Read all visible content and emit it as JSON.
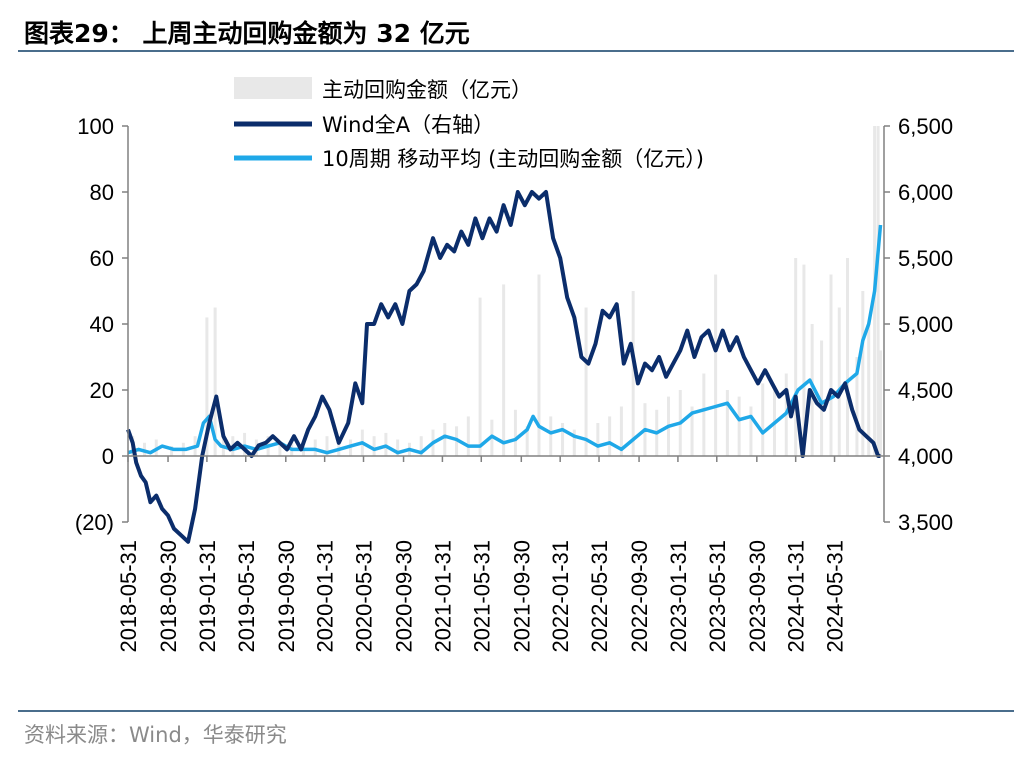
{
  "figure": {
    "title": "图表29： 上周主动回购金额为 32 亿元",
    "source": "资料来源：Wind，华泰研究"
  },
  "chart_data": {
    "type": "bar+line",
    "title": "上周主动回购金额为 32 亿元",
    "legend": [
      {
        "label": "主动回购金额（亿元）",
        "color": "#e8e8e8",
        "kind": "bar"
      },
      {
        "label": "Wind全A（右轴）",
        "color": "#0b2d6b",
        "kind": "line"
      },
      {
        "label": "10周期 移动平均 (主动回购金额（亿元）)",
        "color": "#1fa8e8",
        "kind": "line"
      }
    ],
    "y_left": {
      "min": -20,
      "max": 100,
      "ticks": [
        -20,
        0,
        20,
        40,
        60,
        80,
        100
      ],
      "tick_labels": [
        "(20)",
        "0",
        "20",
        "40",
        "60",
        "80",
        "100"
      ]
    },
    "y_right": {
      "min": 3500,
      "max": 6500,
      "ticks": [
        3500,
        4000,
        4500,
        5000,
        5500,
        6000,
        6500
      ],
      "tick_labels": [
        "3,500",
        "4,000",
        "4,500",
        "5,000",
        "5,500",
        "6,000",
        "6,500"
      ]
    },
    "x_range": [
      2018.41,
      2024.83
    ],
    "x_tick_positions": [
      2018.41,
      2018.75,
      2019.08,
      2019.41,
      2019.75,
      2020.08,
      2020.41,
      2020.75,
      2021.08,
      2021.41,
      2021.75,
      2022.08,
      2022.41,
      2022.75,
      2023.08,
      2023.41,
      2023.75,
      2024.08,
      2024.41
    ],
    "x_tick_labels": [
      "2018-05-31",
      "2018-09-30",
      "2019-01-31",
      "2019-05-31",
      "2019-09-30",
      "2020-01-31",
      "2020-05-31",
      "2020-09-30",
      "2021-01-31",
      "2021-05-31",
      "2021-09-30",
      "2022-01-31",
      "2022-05-31",
      "2022-09-30",
      "2023-01-31",
      "2023-05-31",
      "2023-09-30",
      "2024-01-31",
      "2024-05-31"
    ],
    "series": [
      {
        "name": "主动回购金额（亿元）",
        "axis": "left",
        "type": "bar",
        "x": [
          2018.45,
          2018.55,
          2018.65,
          2018.78,
          2018.88,
          2018.98,
          2019.08,
          2019.15,
          2019.22,
          2019.3,
          2019.4,
          2019.5,
          2019.6,
          2019.7,
          2019.8,
          2019.9,
          2020.0,
          2020.1,
          2020.2,
          2020.3,
          2020.4,
          2020.5,
          2020.6,
          2020.7,
          2020.8,
          2020.9,
          2021.0,
          2021.1,
          2021.2,
          2021.3,
          2021.4,
          2021.5,
          2021.6,
          2021.7,
          2021.8,
          2021.9,
          2022.0,
          2022.1,
          2022.2,
          2022.3,
          2022.4,
          2022.5,
          2022.6,
          2022.7,
          2022.8,
          2022.9,
          2023.0,
          2023.1,
          2023.2,
          2023.3,
          2023.4,
          2023.5,
          2023.6,
          2023.7,
          2023.8,
          2023.9,
          2024.0,
          2024.08,
          2024.15,
          2024.22,
          2024.3,
          2024.38,
          2024.45,
          2024.52,
          2024.6,
          2024.65,
          2024.7,
          2024.75,
          2024.78,
          2024.8
        ],
        "values": [
          6,
          4,
          5,
          3,
          4,
          6,
          42,
          45,
          8,
          6,
          7,
          5,
          6,
          4,
          5,
          3,
          5,
          6,
          4,
          5,
          8,
          6,
          7,
          5,
          4,
          6,
          8,
          10,
          9,
          12,
          48,
          11,
          52,
          14,
          9,
          55,
          12,
          10,
          8,
          45,
          10,
          12,
          15,
          50,
          16,
          14,
          18,
          20,
          15,
          25,
          55,
          20,
          18,
          15,
          22,
          20,
          25,
          60,
          58,
          40,
          35,
          55,
          45,
          60,
          30,
          50,
          40,
          100,
          100,
          32
        ]
      },
      {
        "name": "Wind全A（右轴）",
        "axis": "right",
        "type": "line",
        "x": [
          2018.41,
          2018.45,
          2018.48,
          2018.52,
          2018.56,
          2018.6,
          2018.65,
          2018.7,
          2018.75,
          2018.8,
          2018.86,
          2018.92,
          2018.98,
          2019.04,
          2019.1,
          2019.16,
          2019.22,
          2019.28,
          2019.34,
          2019.4,
          2019.46,
          2019.52,
          2019.58,
          2019.64,
          2019.7,
          2019.76,
          2019.82,
          2019.88,
          2019.94,
          2020.0,
          2020.06,
          2020.12,
          2020.2,
          2020.28,
          2020.34,
          2020.4,
          2020.44,
          2020.5,
          2020.56,
          2020.62,
          2020.68,
          2020.74,
          2020.8,
          2020.86,
          2020.92,
          2021.0,
          2021.06,
          2021.12,
          2021.18,
          2021.24,
          2021.3,
          2021.36,
          2021.42,
          2021.48,
          2021.54,
          2021.6,
          2021.66,
          2021.72,
          2021.78,
          2021.84,
          2021.9,
          2021.96,
          2022.02,
          2022.08,
          2022.14,
          2022.2,
          2022.26,
          2022.32,
          2022.38,
          2022.44,
          2022.5,
          2022.56,
          2022.62,
          2022.68,
          2022.74,
          2022.8,
          2022.86,
          2022.92,
          2022.98,
          2023.04,
          2023.1,
          2023.16,
          2023.22,
          2023.28,
          2023.34,
          2023.4,
          2023.46,
          2023.52,
          2023.58,
          2023.64,
          2023.7,
          2023.76,
          2023.82,
          2023.88,
          2023.94,
          2024.0,
          2024.04,
          2024.08,
          2024.14,
          2024.2,
          2024.26,
          2024.32,
          2024.38,
          2024.44,
          2024.5,
          2024.56,
          2024.62,
          2024.68,
          2024.74,
          2024.78,
          2024.8
        ],
        "values": [
          4200,
          4100,
          3950,
          3850,
          3800,
          3650,
          3700,
          3600,
          3550,
          3450,
          3400,
          3350,
          3600,
          4000,
          4250,
          4450,
          4150,
          4050,
          4100,
          4050,
          4000,
          4080,
          4100,
          4150,
          4100,
          4050,
          4150,
          4050,
          4200,
          4300,
          4450,
          4350,
          4100,
          4250,
          4550,
          4400,
          5000,
          5000,
          5150,
          5050,
          5150,
          5000,
          5250,
          5300,
          5400,
          5650,
          5500,
          5600,
          5550,
          5700,
          5600,
          5800,
          5650,
          5800,
          5700,
          5900,
          5750,
          6000,
          5900,
          6000,
          5950,
          6000,
          5650,
          5500,
          5200,
          5050,
          4750,
          4700,
          4850,
          5100,
          5050,
          5150,
          4700,
          4850,
          4550,
          4700,
          4650,
          4750,
          4600,
          4700,
          4800,
          4950,
          4750,
          4900,
          4950,
          4800,
          4950,
          4800,
          4900,
          4750,
          4650,
          4550,
          4650,
          4550,
          4450,
          4500,
          4300,
          4450,
          4000,
          4500,
          4400,
          4350,
          4500,
          4450,
          4550,
          4350,
          4200,
          4150,
          4100,
          4000,
          4000
        ]
      },
      {
        "name": "10周期 移动平均 (主动回购金额（亿元）)",
        "axis": "left",
        "type": "line",
        "x": [
          2018.41,
          2018.5,
          2018.6,
          2018.7,
          2018.8,
          2018.9,
          2019.0,
          2019.05,
          2019.1,
          2019.15,
          2019.2,
          2019.3,
          2019.4,
          2019.5,
          2019.6,
          2019.7,
          2019.8,
          2019.9,
          2020.0,
          2020.1,
          2020.2,
          2020.3,
          2020.4,
          2020.5,
          2020.6,
          2020.7,
          2020.8,
          2020.9,
          2021.0,
          2021.1,
          2021.2,
          2021.3,
          2021.4,
          2021.5,
          2021.6,
          2021.7,
          2021.8,
          2021.85,
          2021.9,
          2022.0,
          2022.1,
          2022.2,
          2022.3,
          2022.4,
          2022.5,
          2022.6,
          2022.7,
          2022.8,
          2022.9,
          2023.0,
          2023.1,
          2023.2,
          2023.3,
          2023.4,
          2023.5,
          2023.6,
          2023.7,
          2023.8,
          2023.9,
          2024.0,
          2024.1,
          2024.2,
          2024.3,
          2024.4,
          2024.5,
          2024.6,
          2024.65,
          2024.7,
          2024.75,
          2024.8
        ],
        "values": [
          1,
          2,
          1,
          3,
          2,
          2,
          3,
          10,
          12,
          5,
          3,
          2,
          3,
          2,
          3,
          4,
          2,
          2,
          2,
          1,
          2,
          3,
          4,
          2,
          3,
          1,
          2,
          1,
          4,
          6,
          5,
          3,
          3,
          6,
          4,
          5,
          8,
          12,
          9,
          7,
          8,
          6,
          5,
          3,
          4,
          2,
          5,
          8,
          7,
          9,
          10,
          13,
          14,
          15,
          16,
          11,
          12,
          7,
          10,
          13,
          20,
          23,
          16,
          18,
          22,
          25,
          35,
          40,
          50,
          70
        ]
      }
    ]
  }
}
